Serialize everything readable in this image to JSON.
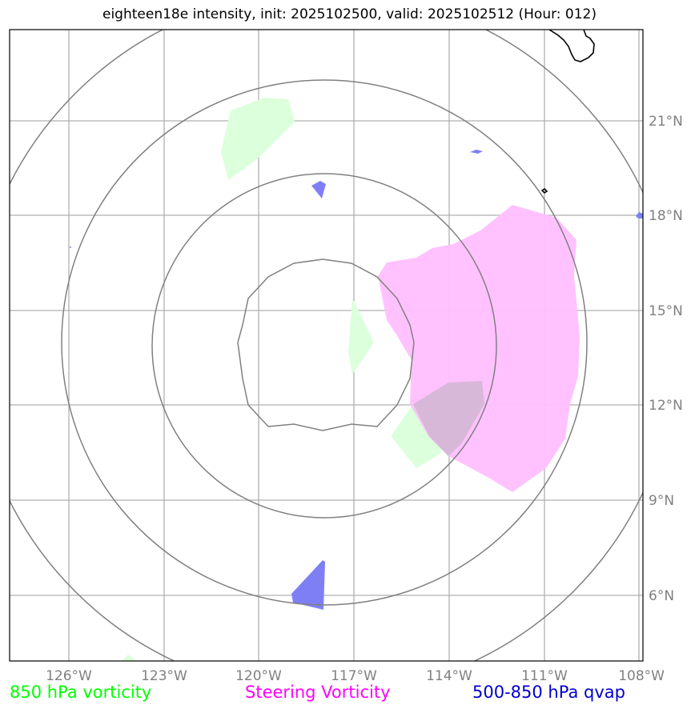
{
  "title": "eighteen18e intensity, init: 2025102500, valid: 2025102512 (Hour: 012)",
  "x_ticks": [
    {
      "lon": -126,
      "label": "126°W"
    },
    {
      "lon": -123,
      "label": "123°W"
    },
    {
      "lon": -120,
      "label": "120°W"
    },
    {
      "lon": -117,
      "label": "117°W"
    },
    {
      "lon": -114,
      "label": "114°W"
    },
    {
      "lon": -111,
      "label": "111°W"
    },
    {
      "lon": -108,
      "label": "108°W"
    }
  ],
  "y_ticks": [
    {
      "lat": 6,
      "label": "6°N"
    },
    {
      "lat": 9,
      "label": "9°N"
    },
    {
      "lat": 12,
      "label": "12°N"
    },
    {
      "lat": 15,
      "label": "15°N"
    },
    {
      "lat": 18,
      "label": "18°N"
    },
    {
      "lat": 21,
      "label": "21°N"
    }
  ],
  "extent": {
    "lon": [
      -128,
      -108
    ],
    "lat": [
      4,
      24
    ]
  },
  "legend": [
    {
      "label": "850 hPa vorticity",
      "color": "#00ff00"
    },
    {
      "label": "Steering Vorticity",
      "color": "#ff00ff"
    },
    {
      "label": "500-850 hPa qvap",
      "color": "#0000cc"
    }
  ],
  "colors": {
    "vorticity_850": "#dcffdc",
    "steering_vorticity": "#ffbfff",
    "qvap": "#7f7ff5",
    "range_rings": "#808080",
    "gridlines": "#b0b0b0",
    "coastline": "#000000"
  }
}
